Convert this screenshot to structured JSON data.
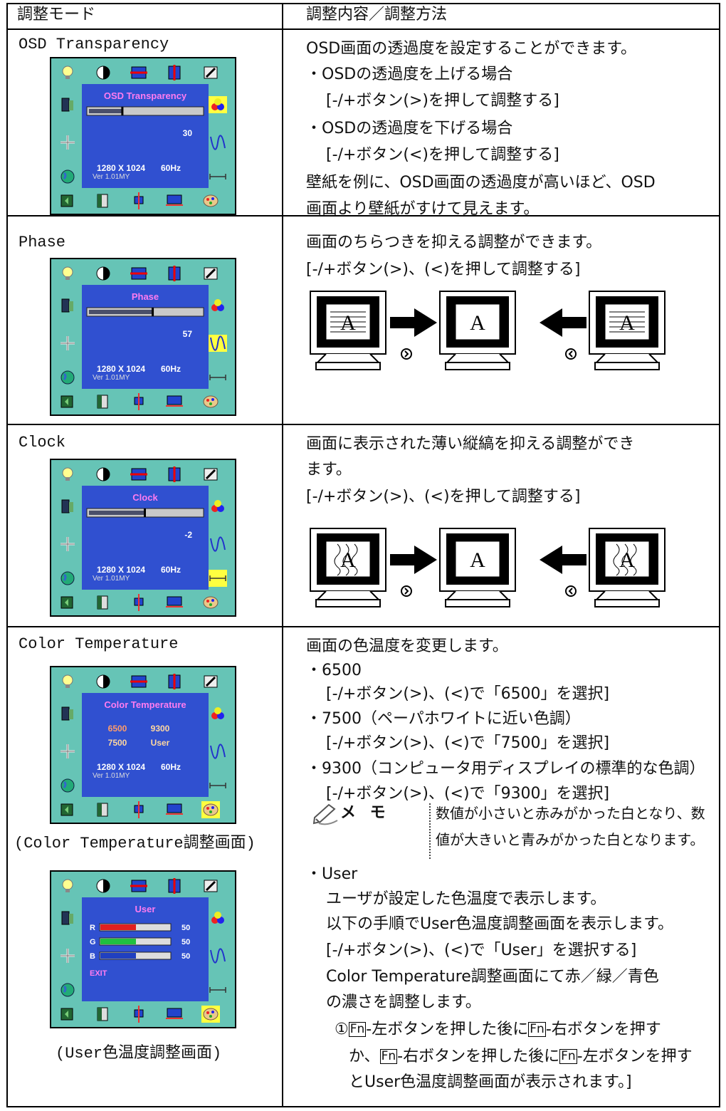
{
  "header": {
    "mode": "調整モード",
    "method": "調整内容／調整方法"
  },
  "rows": [
    {
      "mode": "OSD Transparency",
      "screen": {
        "title": "OSD Transparency",
        "value": 30,
        "resolution": "1280 X 1024",
        "frequency": "60Hz",
        "version": "Ver 1.01MY"
      },
      "lines": [
        "OSD画面の透過度を設定することができます。",
        "・OSDの透過度を上げる場合",
        "[-/+ボタン(>)を押して調整する]",
        "・OSDの透過度を下げる場合",
        "[-/+ボタン(<)を押して調整する]",
        "壁紙を例に、OSD画面の透過度が高いほど、OSD",
        "画面より壁紙がすけて見えます。"
      ]
    },
    {
      "mode": "Phase",
      "screen": {
        "title": "Phase",
        "value": 57,
        "resolution": "1280 X 1024",
        "frequency": "60Hz",
        "version": "Ver 1.01MY"
      },
      "lines": [
        "画面のちらつきを抑える調整ができます。",
        "[-/+ボタン(>)、(<)を押して調整する]"
      ],
      "diagram": {
        "letters": [
          "A",
          "A",
          "A"
        ]
      }
    },
    {
      "mode": "Clock",
      "screen": {
        "title": "Clock",
        "value": -2,
        "resolution": "1280 X 1024",
        "frequency": "60Hz",
        "version": "Ver 1.01MY"
      },
      "lines": [
        "画面に表示された薄い縦縞を抑える調整ができ",
        "ます。",
        "[-/+ボタン(>)、(<)を押して調整する]"
      ],
      "diagram": {
        "letters": [
          "A",
          "A",
          "A"
        ]
      }
    },
    {
      "mode": "Color Temperature",
      "screens": [
        {
          "title": "Color Temperature",
          "options": [
            "6500",
            "9300",
            "7500",
            "User"
          ],
          "resolution": "1280 X 1024",
          "frequency": "60Hz",
          "version": "Ver 1.01MY",
          "caption": "(Color Temperature調整画面)"
        },
        {
          "title": "User",
          "channels": [
            {
              "label": "R",
              "value": 50
            },
            {
              "label": "G",
              "value": 50
            },
            {
              "label": "B",
              "value": 50
            }
          ],
          "exit": "EXIT",
          "caption": "(User色温度調整画面)"
        }
      ],
      "lines": [
        "画面の色温度を変更します。",
        "・6500",
        "[-/+ボタン(>)、(<)で「6500」を選択]",
        "・7500（ペーパホワイトに近い色調）",
        "[-/+ボタン(>)、(<)で「7500」を選択]",
        "・9300（コンピュータ用ディスプレイの標準的な色調）",
        "[-/+ボタン(>)、(<)で「9300」を選択]"
      ],
      "memo": {
        "label": "メ モ",
        "lines": [
          "数値が小さいと赤みがかった白となり、数",
          "値が大きいと青みがかった白となります。"
        ]
      },
      "lines2": [
        "・User",
        "ユーザが設定した色温度で表示します。",
        "以下の手順でUser色温度調整画面を表示します。",
        "[-/+ボタン(>)、(<)で「User」を選択する]",
        "Color Temperature調整画面にて赤／緑／青色",
        "の濃さを調整します。"
      ],
      "steps": [
        [
          {
            "text": "①"
          },
          {
            "key": "Fn"
          },
          {
            "text": "-左ボタンを押した後に"
          },
          {
            "key": "Fn"
          },
          {
            "text": "-右ボタンを押す"
          }
        ],
        [
          {
            "text": "か、"
          },
          {
            "key": "Fn"
          },
          {
            "text": "-右ボタンを押した後に"
          },
          {
            "key": "Fn"
          },
          {
            "text": "-左ボタンを押す"
          }
        ],
        [
          {
            "text": "とUser色温度調整画面が表示されます。]"
          }
        ]
      ]
    }
  ]
}
